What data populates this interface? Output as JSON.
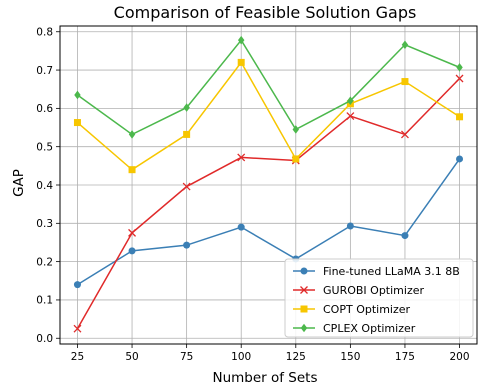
{
  "chart_data": {
    "type": "line",
    "title": "Comparison of Feasible Solution Gaps",
    "xlabel": "Number of Sets",
    "ylabel": "GAP",
    "x": [
      25,
      50,
      75,
      100,
      125,
      150,
      175,
      200
    ],
    "x_ticks": [
      "25",
      "50",
      "75",
      "100",
      "125",
      "150",
      "175",
      "200"
    ],
    "y_ticks": [
      "0.0",
      "0.1",
      "0.2",
      "0.3",
      "0.4",
      "0.5",
      "0.6",
      "0.7",
      "0.8"
    ],
    "xlim": [
      17,
      208
    ],
    "ylim": [
      -0.015,
      0.815
    ],
    "grid": true,
    "legend_position": "lower-right",
    "series": [
      {
        "name": "Fine-tuned LLaMA 3.1 8B",
        "color": "#3b7fb5",
        "marker": "circle",
        "values": [
          0.14,
          0.228,
          0.243,
          0.29,
          0.207,
          0.293,
          0.268,
          0.468
        ]
      },
      {
        "name": "GUROBI Optimizer",
        "color": "#e02a2a",
        "marker": "x",
        "values": [
          0.025,
          0.275,
          0.396,
          0.472,
          0.464,
          0.58,
          0.532,
          0.678
        ]
      },
      {
        "name": "COPT Optimizer",
        "color": "#f7c600",
        "marker": "square",
        "values": [
          0.563,
          0.44,
          0.532,
          0.72,
          0.468,
          0.612,
          0.67,
          0.578
        ]
      },
      {
        "name": "CPLEX Optimizer",
        "color": "#4cb84c",
        "marker": "diamond",
        "values": [
          0.635,
          0.532,
          0.602,
          0.778,
          0.545,
          0.62,
          0.766,
          0.707
        ]
      }
    ]
  }
}
